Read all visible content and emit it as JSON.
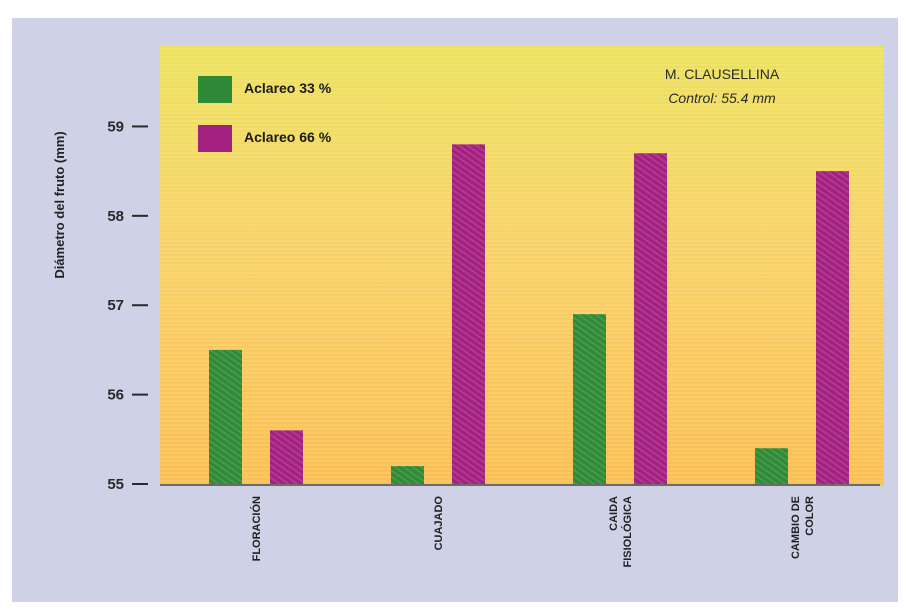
{
  "chart_data": {
    "type": "bar",
    "ylabel": "Diámetro del fruto (mm)",
    "ylim": [
      55,
      59.9
    ],
    "yticks": [
      55,
      56,
      57,
      58,
      59
    ],
    "categories": [
      [
        "FLORACIÓN"
      ],
      [
        "CUAJADO"
      ],
      [
        "CAIDA",
        "FISIOLÓGICA"
      ],
      [
        "CAMBIO DE",
        "COLOR"
      ]
    ],
    "series": [
      {
        "name": "Aclareo 33 %",
        "color": "#2e8a36",
        "values": [
          56.5,
          55.2,
          56.9,
          55.4
        ]
      },
      {
        "name": "Aclareo 66 %",
        "color": "#a3207f",
        "values": [
          55.6,
          58.8,
          58.7,
          58.5
        ]
      }
    ],
    "annotation": {
      "line1": "M. CLAUSELLINA",
      "line2": "Control: 55.4 mm"
    },
    "legend_position": "top-left",
    "grid": false
  }
}
